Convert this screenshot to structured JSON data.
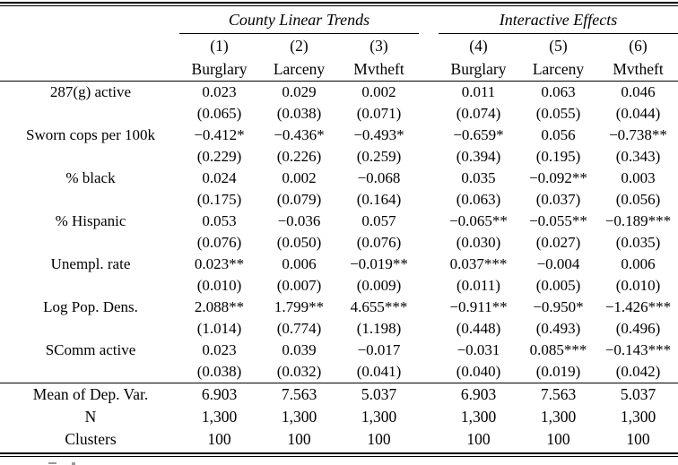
{
  "table": {
    "groups": [
      {
        "label": "County Linear Trends"
      },
      {
        "label": "Interactive Effects"
      }
    ],
    "column_numbers": [
      "(1)",
      "(2)",
      "(3)",
      "(4)",
      "(5)",
      "(6)"
    ],
    "column_names": [
      "Burglary",
      "Larceny",
      "Mvtheft",
      "Burglary",
      "Larceny",
      "Mvtheft"
    ],
    "rows": [
      {
        "label": "287(g) active",
        "coefficients": [
          "0.023",
          "0.029",
          "0.002",
          "0.011",
          "0.063",
          "0.046"
        ],
        "std_errors": [
          "(0.065)",
          "(0.038)",
          "(0.071)",
          "(0.074)",
          "(0.055)",
          "(0.044)"
        ]
      },
      {
        "label": "Sworn cops per 100k",
        "coefficients": [
          "−0.412*",
          "−0.436*",
          "−0.493*",
          "−0.659*",
          "0.056",
          "−0.738**"
        ],
        "std_errors": [
          "(0.229)",
          "(0.226)",
          "(0.259)",
          "(0.394)",
          "(0.195)",
          "(0.343)"
        ]
      },
      {
        "label": "% black",
        "coefficients": [
          "0.024",
          "0.002",
          "−0.068",
          "0.035",
          "−0.092**",
          "0.003"
        ],
        "std_errors": [
          "(0.175)",
          "(0.079)",
          "(0.164)",
          "(0.063)",
          "(0.037)",
          "(0.056)"
        ]
      },
      {
        "label": "% Hispanic",
        "coefficients": [
          "0.053",
          "−0.036",
          "0.057",
          "−0.065**",
          "−0.055**",
          "−0.189***"
        ],
        "std_errors": [
          "(0.076)",
          "(0.050)",
          "(0.076)",
          "(0.030)",
          "(0.027)",
          "(0.035)"
        ]
      },
      {
        "label": "Unempl. rate",
        "coefficients": [
          "0.023**",
          "0.006",
          "−0.019**",
          "0.037***",
          "−0.004",
          "0.006"
        ],
        "std_errors": [
          "(0.010)",
          "(0.007)",
          "(0.009)",
          "(0.011)",
          "(0.005)",
          "(0.010)"
        ]
      },
      {
        "label": "Log Pop. Dens.",
        "coefficients": [
          "2.088**",
          "1.799**",
          "4.655***",
          "−0.911**",
          "−0.950*",
          "−1.426***"
        ],
        "std_errors": [
          "(1.014)",
          "(0.774)",
          "(1.198)",
          "(0.448)",
          "(0.493)",
          "(0.496)"
        ]
      },
      {
        "label": "SComm active",
        "coefficients": [
          "0.023",
          "0.039",
          "−0.017",
          "−0.031",
          "0.085***",
          "−0.143***"
        ],
        "std_errors": [
          "(0.038)",
          "(0.032)",
          "(0.041)",
          "(0.040)",
          "(0.019)",
          "(0.042)"
        ]
      }
    ],
    "summary_rows": [
      {
        "label": "Mean of Dep. Var.",
        "values": [
          "6.903",
          "7.563",
          "5.037",
          "6.903",
          "7.563",
          "5.037"
        ]
      },
      {
        "label": "N",
        "values": [
          "1,300",
          "1,300",
          "1,300",
          "1,300",
          "1,300",
          "1,300"
        ]
      },
      {
        "label": "Clusters",
        "values": [
          "100",
          "100",
          "100",
          "100",
          "100",
          "100"
        ]
      }
    ]
  },
  "colors": {
    "text": "#000000",
    "background": "#ffffff",
    "rule": "#000000"
  }
}
